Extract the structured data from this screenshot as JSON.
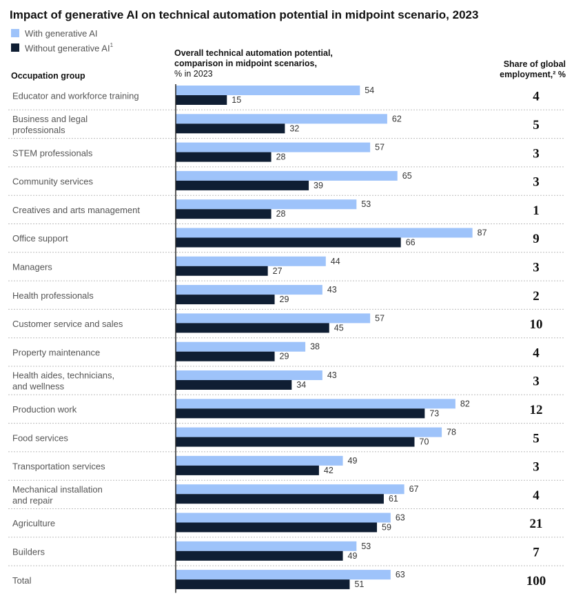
{
  "title": "Impact of generative AI on technical automation potential in midpoint scenario, 2023",
  "legend": {
    "with_label": "With generative AI",
    "without_label": "Without generative AI",
    "without_sup": "1"
  },
  "headers": {
    "occupation": "Occupation group",
    "potential_line1": "Overall technical automation potential,",
    "potential_line2": "comparison in midpoint scenarios,",
    "potential_line3": "% in 2023",
    "share_line1": "Share of global",
    "share_line2": "employment,² %"
  },
  "colors": {
    "with": "#9EC3FA",
    "without": "#0F1E33",
    "divider": "#BBBBBB",
    "axis": "#222222"
  },
  "chart_data": {
    "type": "bar",
    "orientation": "horizontal",
    "xlim": [
      0,
      100
    ],
    "categories": [
      [
        "Educator and workforce training"
      ],
      [
        "Business and legal",
        "professionals"
      ],
      [
        "STEM professionals"
      ],
      [
        "Community services"
      ],
      [
        "Creatives and arts management"
      ],
      [
        "Office support"
      ],
      [
        "Managers"
      ],
      [
        "Health professionals"
      ],
      [
        "Customer service and sales"
      ],
      [
        "Property maintenance"
      ],
      [
        "Health aides, technicians,",
        "and wellness"
      ],
      [
        "Production work"
      ],
      [
        "Food services"
      ],
      [
        "Transportation services"
      ],
      [
        "Mechanical installation",
        "and repair"
      ],
      [
        "Agriculture"
      ],
      [
        "Builders"
      ],
      [
        "Total"
      ]
    ],
    "series": [
      {
        "name": "With generative AI",
        "values": [
          54,
          62,
          57,
          65,
          53,
          87,
          44,
          43,
          57,
          38,
          43,
          82,
          78,
          49,
          67,
          63,
          53,
          63
        ]
      },
      {
        "name": "Without generative AI",
        "values": [
          15,
          32,
          28,
          39,
          28,
          66,
          27,
          29,
          45,
          29,
          34,
          73,
          70,
          42,
          61,
          59,
          49,
          51
        ]
      }
    ],
    "share_of_employment": [
      4,
      5,
      3,
      3,
      1,
      9,
      3,
      2,
      10,
      4,
      3,
      12,
      5,
      3,
      4,
      21,
      7,
      100
    ]
  }
}
